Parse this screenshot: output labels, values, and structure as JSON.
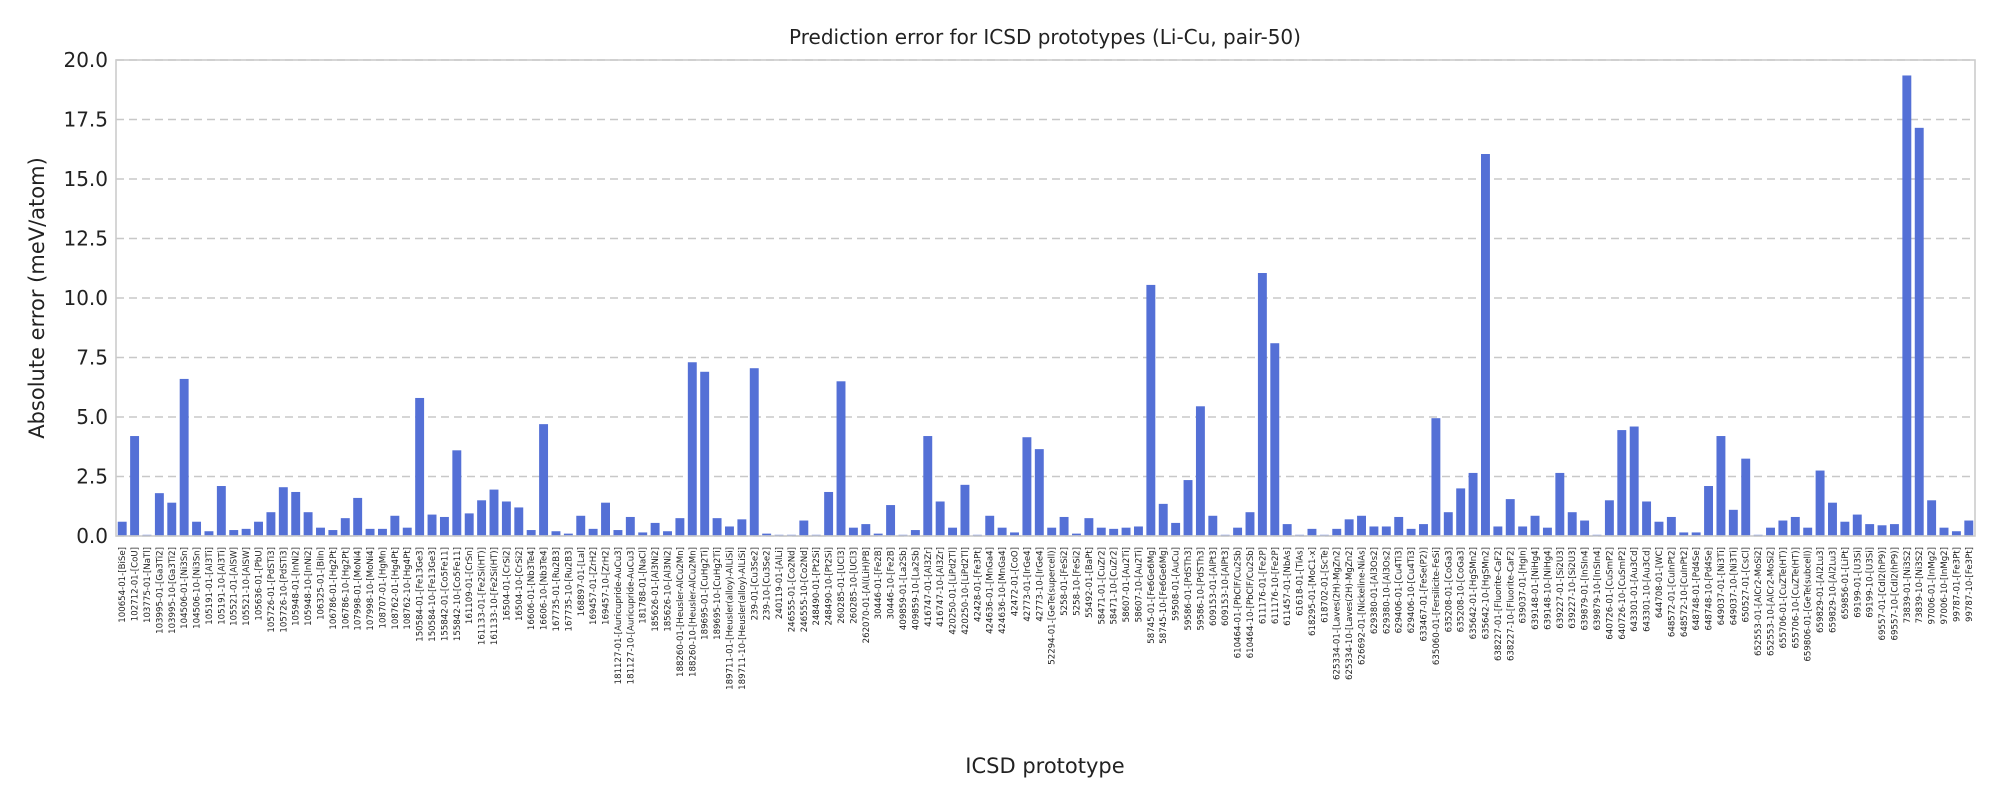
{
  "chart_data": {
    "type": "bar",
    "title": "Prediction error for ICSD prototypes (Li-Cu, pair-50)",
    "xlabel": "ICSD prototype",
    "ylabel": "Absolute error (meV/atom)",
    "ylim": [
      0,
      20
    ],
    "yticks": [
      "0.0",
      "2.5",
      "5.0",
      "7.5",
      "10.0",
      "12.5",
      "15.0",
      "17.5",
      "20.0"
    ],
    "grid": "horizontal dashed",
    "bar_color": "#5470d6",
    "categories": [
      "100654-01-[BiSe]",
      "102712-01-[CoU]",
      "103775-01-[NaTl]",
      "103995-01-[Ga3Ti2]",
      "103995-10-[Ga3Ti2]",
      "104506-01-[Ni3Sn]",
      "104506-10-[Ni3Sn]",
      "105191-01-[Al3Ti]",
      "105191-10-[Al3Ti]",
      "105521-01-[AlSW]",
      "105521-10-[AlSW]",
      "105636-01-[PbU]",
      "105726-01-[PdSTi3]",
      "105726-10-[PdSTi3]",
      "105948-01-[InNi2]",
      "105948-10-[InNi2]",
      "106325-01-[BiIn]",
      "106786-01-[Hg2Pt]",
      "106786-10-[Hg2Pt]",
      "107998-01-[MoNi4]",
      "107998-10-[MoNi4]",
      "108707-01-[HgMn]",
      "108762-01-[Hg4Pt]",
      "108762-10-[Hg4Pt]",
      "150584-01-[Fe13Ge3]",
      "150584-10-[Fe13Ge3]",
      "155842-01-[Co5Fe11]",
      "155842-10-[Co5Fe11]",
      "161109-01-[CrSn]",
      "161133-01-[Fe2Si(HT)]",
      "161133-10-[Fe2Si(HT)]",
      "16504-01-[CrSi2]",
      "16504-10-[CrSi2]",
      "16606-01-[Nb3Te4]",
      "16606-10-[Nb3Te4]",
      "167735-01-[Ru2B3]",
      "167735-10-[Ru2B3]",
      "168897-01-[LaI]",
      "169457-01-[ZrH2]",
      "169457-10-[ZrH2]",
      "181127-01-[Auricupride-AuCu3]",
      "181127-10-[Auricupride-AuCu3]",
      "181788-01-[NaCl]",
      "185626-01-[Al3Ni2]",
      "185626-10-[Al3Ni2]",
      "188260-01-[Heusler-AlCu2Mn]",
      "188260-10-[Heusler-AlCu2Mn]",
      "189695-01-[CuHg2Ti]",
      "189695-10-[CuHg2Ti]",
      "189711-01-[Heusler(alloy)-AlLiSi]",
      "189711-10-[Heusler(alloy)-AlLiSi]",
      "239-01-[Cu3Se2]",
      "239-10-[Cu3Se2]",
      "240119-01-[AlLi]",
      "246555-01-[Co2Nd]",
      "246555-10-[Co2Nd]",
      "248490-01-[Pt2Si]",
      "248490-10-[Pt2Si]",
      "260285-01-[UCl3]",
      "260285-10-[UCl3]",
      "262070-01-[Al(LiH)PB]",
      "30446-01-[Fe2B]",
      "30446-10-[Fe2B]",
      "409859-01-[La2Sb]",
      "409859-10-[La2Sb]",
      "416747-01-[Al3Zr]",
      "416747-10-[Al3Zr]",
      "420250-01-[LiPd2Tl]",
      "420250-10-[LiPd2Tl]",
      "42428-01-[Fe3Pt]",
      "424636-01-[MnGa4]",
      "424636-10-[MnGa4]",
      "42472-01-[CoO]",
      "42773-01-[IrGe4]",
      "42773-10-[IrGe4]",
      "52294-01-[GeTe(supercell)]",
      "5258-01-[FeSi2]",
      "5258-10-[FeSi2]",
      "55492-01-[BaPt]",
      "58471-01-[CuZr2]",
      "58471-10-[CuZr2]",
      "58607-01-[Au2Ti]",
      "58607-10-[Au2Ti]",
      "58745-01-[Fe6Ge6Mg]",
      "58745-10-[Fe6Ge6Mg]",
      "59508-01-[AuCu]",
      "59586-01-[PdSTh3]",
      "59586-10-[PdSTh3]",
      "609153-01-[AlPt3]",
      "609153-10-[AlPt3]",
      "610464-01-[PbClF/Cu2Sb]",
      "610464-10-[PbClF/Cu2Sb]",
      "611176-01-[Fe2P]",
      "611176-10-[Fe2P]",
      "611457-01-[NbAs]",
      "61618-01-[TiAs]",
      "618295-01-[MoC1-x]",
      "618702-01-[ScTe]",
      "625334-01-[Laves(2H)-MgZn2]",
      "625334-10-[Laves(2H)-MgZn2]",
      "626692-01-[Nickeline-NiAs]",
      "629380-01-[Al3Os2]",
      "629380-10-[Al3Os2]",
      "629406-01-[Cu4Ti3]",
      "629406-10-[Cu4Ti3]",
      "633467-01-[FeSe(P2)]",
      "635060-01-[Fersilicite-FeSi]",
      "635208-01-[CoGa3]",
      "635208-10-[CoGa3]",
      "635642-01-[HgSMn2]",
      "635642-10-[HgSMn2]",
      "638227-01-[Fluorite-CaF2]",
      "638227-10-[Fluorite-CaF2]",
      "639037-01-[HgIn]",
      "639148-01-[NiHg4]",
      "639148-10-[NiHg4]",
      "639227-01-[Si2U3]",
      "639227-10-[Si2U3]",
      "639879-01-[InSIn4]",
      "639879-10-[InSIn4]",
      "640726-01-[CuSmP2]",
      "640726-10-[CuSmP2]",
      "643301-01-[Au3Cd]",
      "643301-10-[Au3Cd]",
      "644708-01-[WC]",
      "648572-01-[CuInPt2]",
      "648572-10-[CuInPt2]",
      "648748-01-[Pd4Se]",
      "648748-10-[Pd4Se]",
      "649037-01-[Ni3Ti]",
      "649037-10-[Ni3Ti]",
      "650527-01-[CsCl]",
      "652553-01-[AlCr2-MoSi2]",
      "652553-10-[AlCr2-MoSi2]",
      "655706-01-[CuZTe(HT)]",
      "655706-10-[CuZTe(HT)]",
      "659806-01-[GeTe(subcell)]",
      "659829-01-[Al2Lu3]",
      "659829-10-[Al2Lu3]",
      "659856-01-[LiPt]",
      "69199-01-[U3Si]",
      "69199-10-[U3Si]",
      "69557-01-[CdI2(hP9)]",
      "69557-10-[CdI2(hP9)]",
      "73839-01-[Ni3S2]",
      "73839-10-[Ni3S2]",
      "97006-01-[InMg2]",
      "97006-10-[InMg2]",
      "99787-01-[Fe3Pt]",
      "99787-10-[Fe3Pt]"
    ],
    "values": [
      0.6,
      4.2,
      0.05,
      1.8,
      1.4,
      6.6,
      0.6,
      0.2,
      2.1,
      0.25,
      0.3,
      0.6,
      1.0,
      2.05,
      1.85,
      1.0,
      0.35,
      0.25,
      0.75,
      1.6,
      0.3,
      0.3,
      0.85,
      0.35,
      5.8,
      0.9,
      0.8,
      3.6,
      0.95,
      1.5,
      1.95,
      1.45,
      1.2,
      0.25,
      4.7,
      0.2,
      0.1,
      0.85,
      0.3,
      1.4,
      0.25,
      0.8,
      0.15,
      0.55,
      0.2,
      0.75,
      7.3,
      6.9,
      0.75,
      0.4,
      0.7,
      7.05,
      0.1,
      0.05,
      0.05,
      0.65,
      0.05,
      1.85,
      6.5,
      0.35,
      0.5,
      0.1,
      1.3,
      0.05,
      0.25,
      4.2,
      1.45,
      0.35,
      2.15,
      0.05,
      0.85,
      0.35,
      0.15,
      4.15,
      3.65,
      0.35,
      0.8,
      0.1,
      0.75,
      0.35,
      0.3,
      0.35,
      0.4,
      10.55,
      1.35,
      0.55,
      2.35,
      5.45,
      0.85,
      0.05,
      0.35,
      1.0,
      11.05,
      8.1,
      0.5,
      0.05,
      0.3,
      0.05,
      0.3,
      0.7,
      0.85,
      0.4,
      0.4,
      0.8,
      0.3,
      0.5,
      4.95,
      1.0,
      2.0,
      2.65,
      16.05,
      0.4,
      1.55,
      0.4,
      0.85,
      0.35,
      2.65,
      1.0,
      0.65,
      0.05,
      1.5,
      4.45,
      4.6,
      1.45,
      0.6,
      0.8,
      0.15,
      0.15,
      2.1,
      4.2,
      1.1,
      3.25,
      0.05,
      0.35,
      0.65,
      0.8,
      0.35,
      2.75,
      1.4,
      0.6,
      0.9,
      0.5,
      0.45,
      0.5,
      19.35,
      17.15,
      1.5,
      0.35,
      0.2,
      0.65
    ]
  }
}
